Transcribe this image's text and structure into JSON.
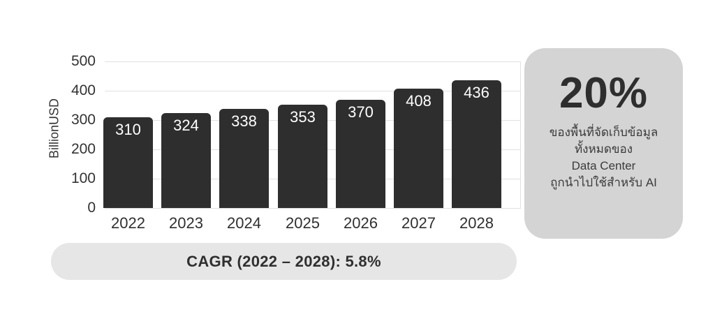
{
  "chart_data": {
    "type": "bar",
    "categories": [
      "2022",
      "2023",
      "2024",
      "2025",
      "2026",
      "2027",
      "2028"
    ],
    "values": [
      310,
      324,
      338,
      353,
      370,
      408,
      436
    ],
    "title": "",
    "xlabel": "",
    "ylabel": "BillionUSD",
    "ylim": [
      0,
      500
    ],
    "yticks": [
      0,
      100,
      200,
      300,
      400,
      500
    ],
    "grid": true,
    "legend": null,
    "bar_color": "#2e2e2e",
    "bar_label_color": "#ffffff"
  },
  "footer": {
    "cagr_label": "CAGR (2022 – 2028): 5.8%"
  },
  "side_panel": {
    "headline": "20%",
    "lines": [
      "ของพื้นที่จัดเก็บข้อมูล",
      "ทั้งหมดของ",
      "Data Center",
      "ถูกนำไปใช้สำหรับ AI"
    ]
  },
  "colors": {
    "background": "#ffffff",
    "bar": "#2e2e2e",
    "gridline": "#e1e1e1",
    "axis_text": "#333333",
    "pill_bg": "#e6e6e6",
    "panel_bg": "#d4d4d4",
    "dark_text": "#2e2e2e"
  }
}
